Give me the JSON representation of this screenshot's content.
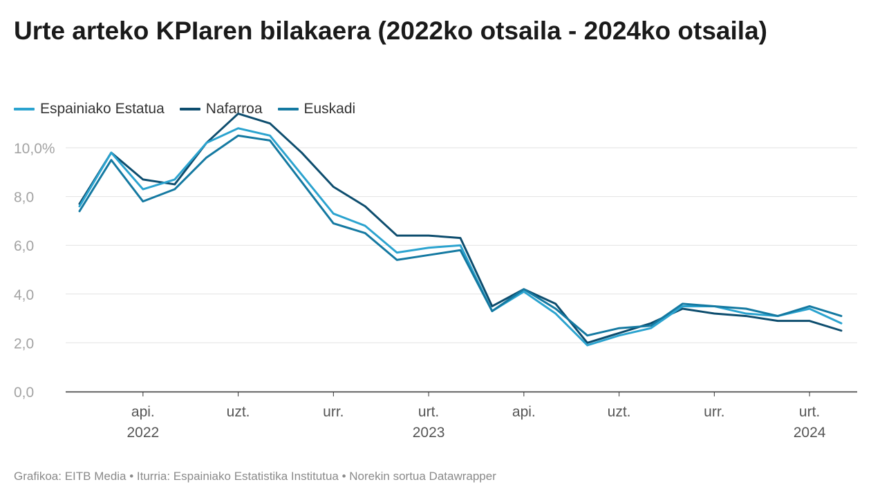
{
  "chart_data": {
    "type": "line",
    "title": "Urte arteko KPIaren bilakaera (2022ko otsaila - 2024ko otsaila)",
    "ylim": [
      0,
      10
    ],
    "y_ticks": [
      "0,0",
      "2,0",
      "4,0",
      "6,0",
      "8,0",
      "10,0%"
    ],
    "y_tick_values": [
      0,
      2,
      4,
      6,
      8,
      10
    ],
    "x_ticks": [
      {
        "label": "api.",
        "year": "2022",
        "index": 2
      },
      {
        "label": "uzt.",
        "year": "",
        "index": 5
      },
      {
        "label": "urr.",
        "year": "",
        "index": 8
      },
      {
        "label": "urt.",
        "year": "2023",
        "index": 11
      },
      {
        "label": "api.",
        "year": "",
        "index": 14
      },
      {
        "label": "uzt.",
        "year": "",
        "index": 17
      },
      {
        "label": "urr.",
        "year": "",
        "index": 20
      },
      {
        "label": "urt.",
        "year": "2024",
        "index": 23
      }
    ],
    "x": [
      "2022-02",
      "2022-03",
      "2022-04",
      "2022-05",
      "2022-06",
      "2022-07",
      "2022-08",
      "2022-09",
      "2022-10",
      "2022-11",
      "2022-12",
      "2023-01",
      "2023-02",
      "2023-03",
      "2023-04",
      "2023-05",
      "2023-06",
      "2023-07",
      "2023-08",
      "2023-09",
      "2023-10",
      "2023-11",
      "2023-12",
      "2024-01",
      "2024-02"
    ],
    "grid": true,
    "legend_position": "top-left",
    "series": [
      {
        "name": "Espainiako Estatua",
        "color": "#2ba3cf",
        "values": [
          7.6,
          9.8,
          8.3,
          8.7,
          10.2,
          10.8,
          10.5,
          8.9,
          7.3,
          6.8,
          5.7,
          5.9,
          6.0,
          3.3,
          4.1,
          3.2,
          1.9,
          2.3,
          2.6,
          3.5,
          3.5,
          3.2,
          3.1,
          3.4,
          2.8
        ]
      },
      {
        "name": "Nafarroa",
        "color": "#0d4d6e",
        "values": [
          7.7,
          9.8,
          8.7,
          8.5,
          10.2,
          11.4,
          11.0,
          9.8,
          8.4,
          7.6,
          6.4,
          6.4,
          6.3,
          3.5,
          4.2,
          3.6,
          2.0,
          2.4,
          2.8,
          3.4,
          3.2,
          3.1,
          2.9,
          2.9,
          2.5
        ]
      },
      {
        "name": "Euskadi",
        "color": "#1479a1",
        "values": [
          7.4,
          9.5,
          7.8,
          8.3,
          9.6,
          10.5,
          10.3,
          8.6,
          6.9,
          6.5,
          5.4,
          5.6,
          5.8,
          3.3,
          4.2,
          3.4,
          2.3,
          2.6,
          2.7,
          3.6,
          3.5,
          3.4,
          3.1,
          3.5,
          3.1
        ]
      }
    ]
  },
  "footer": "Grafikoa: EITB Media • Iturria: Espainiako Estatistika Institutua • Norekin sortua Datawrapper"
}
